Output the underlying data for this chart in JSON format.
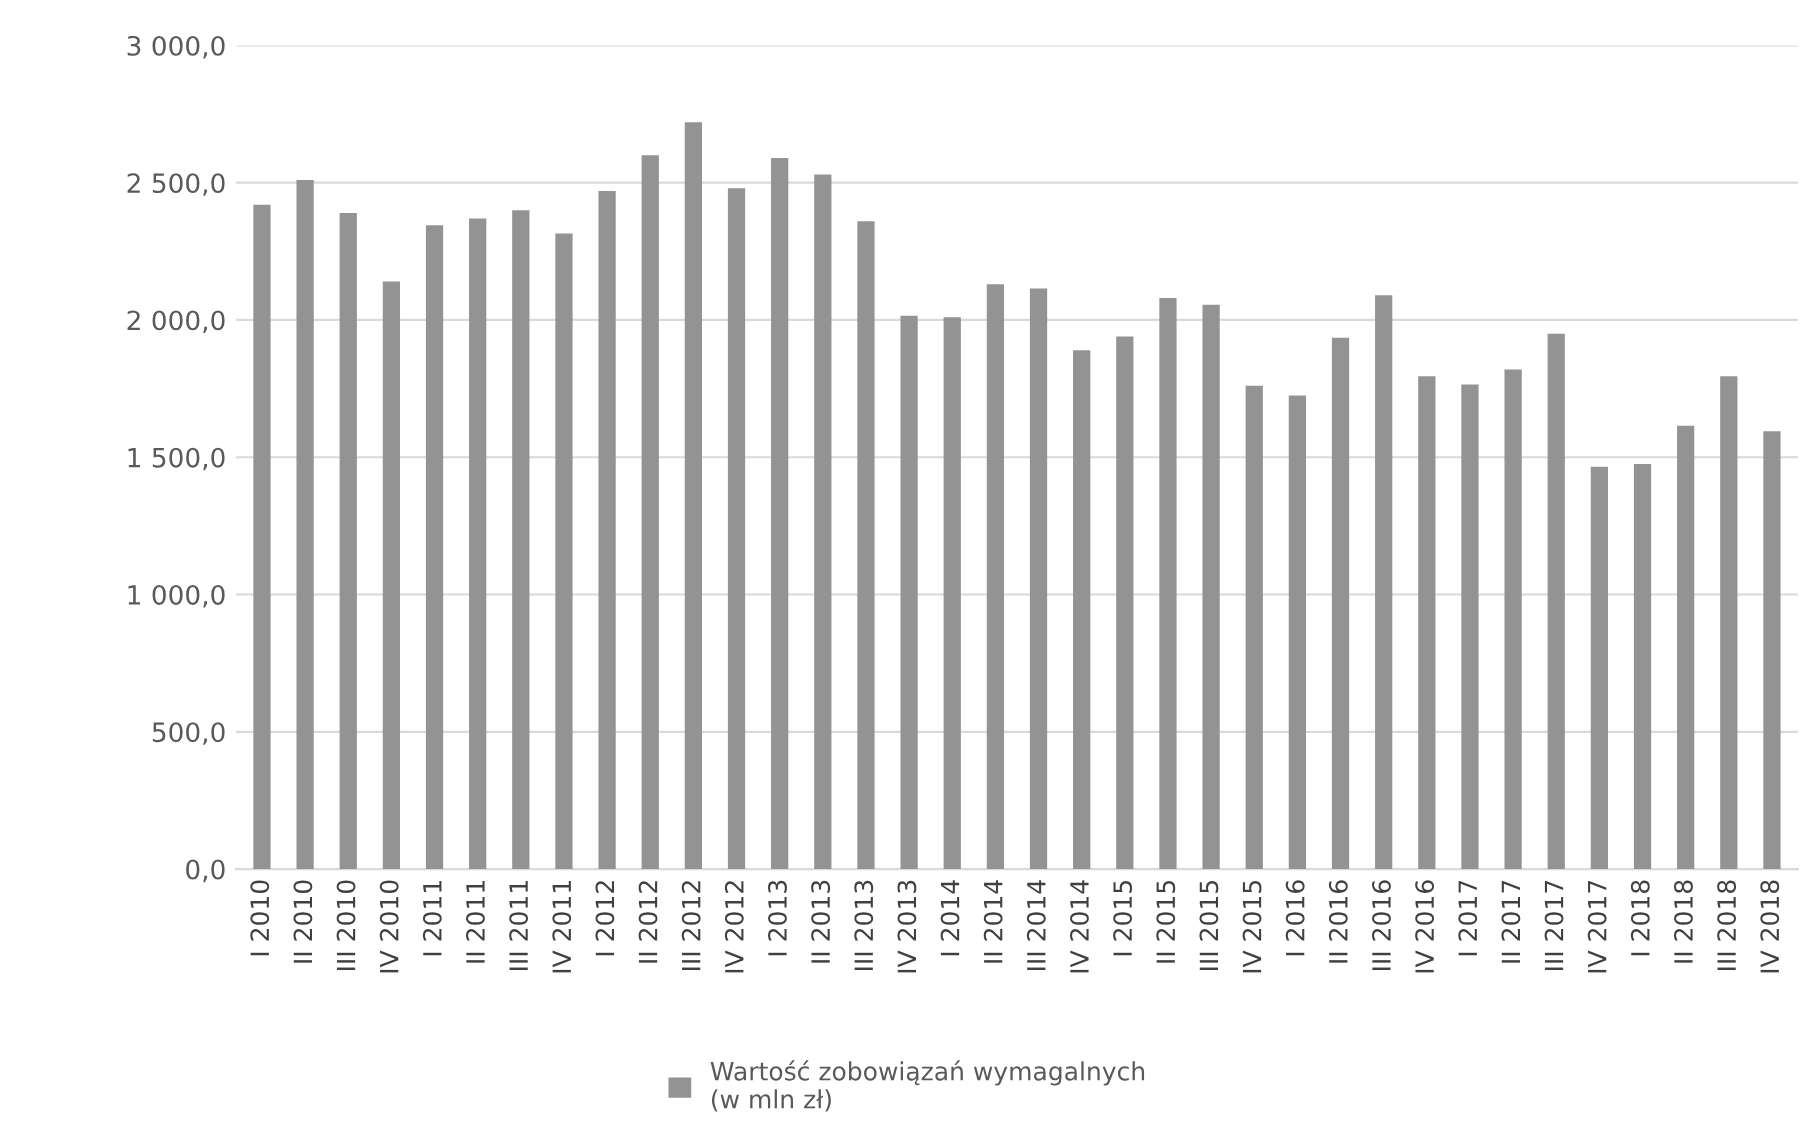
{
  "chart_data": {
    "type": "bar",
    "categories": [
      "I 2010",
      "II 2010",
      "III 2010",
      "IV 2010",
      "I 2011",
      "II 2011",
      "III 2011",
      "IV 2011",
      "I 2012",
      "II 2012",
      "III 2012",
      "IV 2012",
      "I 2013",
      "II 2013",
      "III 2013",
      "IV 2013",
      "I 2014",
      "II 2014",
      "III 2014",
      "IV 2014",
      "I 2015",
      "II 2015",
      "III 2015",
      "IV 2015",
      "I 2016",
      "II 2016",
      "III 2016",
      "IV 2016",
      "I 2017",
      "II 2017",
      "III 2017",
      "IV 2017",
      "I 2018",
      "II 2018",
      "III 2018",
      "IV 2018"
    ],
    "series": [
      {
        "name": "Wartość zobowiązań wymagalnych\n(w mln zł)",
        "color": "#939393",
        "values": [
          2420,
          2510,
          2390,
          2140,
          2345,
          2370,
          2400,
          2315,
          2470,
          2600,
          2720,
          2480,
          2590,
          2530,
          2360,
          2015,
          2010,
          2130,
          2115,
          1890,
          1940,
          2080,
          2055,
          1760,
          1725,
          1935,
          2090,
          1795,
          1765,
          1820,
          1950,
          1465,
          1475,
          1615,
          1795,
          1595
        ]
      }
    ],
    "ylim": [
      0,
      3000
    ],
    "yticks": [
      {
        "value": 0,
        "label": "0,0"
      },
      {
        "value": 500,
        "label": "500,0"
      },
      {
        "value": 1000,
        "label": "1 000,0"
      },
      {
        "value": 1500,
        "label": "1 500,0"
      },
      {
        "value": 2000,
        "label": "2 000,0"
      },
      {
        "value": 2500,
        "label": "2 500,0"
      },
      {
        "value": 3000,
        "label": "3 000,0"
      }
    ],
    "grid": "y",
    "legend": "bottom"
  }
}
